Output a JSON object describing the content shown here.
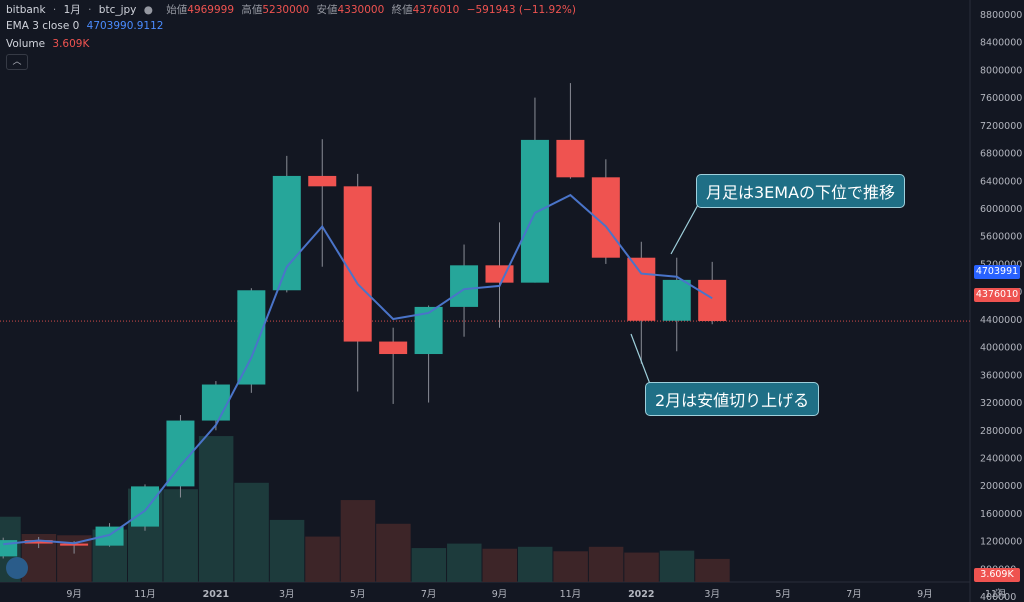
{
  "header": {
    "symbol": "bitbank",
    "interval": "1月",
    "pair": "btc_jpy",
    "ohlc": [
      {
        "label": "始値",
        "value": "4969999"
      },
      {
        "label": "高値",
        "value": "5230000"
      },
      {
        "label": "安値",
        "value": "4330000"
      },
      {
        "label": "終値",
        "value": "4376010"
      }
    ],
    "change": "−591943 (−11.92%)",
    "ema_label": "EMA 3 close 0",
    "ema_value": "4703990.9112",
    "volume_label": "Volume",
    "volume_value": "3.609K",
    "collapse_icon": "chevron-up-icon"
  },
  "annotations": {
    "callout_1": "月足は3EMAの下位で推移",
    "callout_2": "2月は安値切り上げる"
  },
  "price_tags": {
    "ema_tag": "4703991",
    "last_tag": "4376010",
    "volume_tag": "3.609K"
  },
  "colors": {
    "up": "#26a69a",
    "down": "#ef5350",
    "ema": "#4a74c9",
    "background": "#131722"
  },
  "chart_data": {
    "type": "candlestick",
    "months": [
      "2020-07",
      "2020-08",
      "2020-09",
      "2020-10",
      "2020-11",
      "2020-12",
      "2021-01",
      "2021-02",
      "2021-03",
      "2021-04",
      "2021-05",
      "2021-06",
      "2021-07",
      "2021-08",
      "2021-09",
      "2021-10",
      "2021-11",
      "2021-12",
      "2022-01",
      "2022-02",
      "2022-03"
    ],
    "ohlc": [
      [
        980000,
        1250000,
        950000,
        1215000
      ],
      [
        1215000,
        1260000,
        1100000,
        1165000
      ],
      [
        1165000,
        1200000,
        1020000,
        1135000
      ],
      [
        1135000,
        1460000,
        1120000,
        1410000
      ],
      [
        1410000,
        2020000,
        1350000,
        1990000
      ],
      [
        1990000,
        3020000,
        1830000,
        2940000
      ],
      [
        2940000,
        3510000,
        2800000,
        3460000
      ],
      [
        3460000,
        4850000,
        3340000,
        4820000
      ],
      [
        4820000,
        6760000,
        4790000,
        6470000
      ],
      [
        6470000,
        7000000,
        5160000,
        6320000
      ],
      [
        6320000,
        6500000,
        3360000,
        4080000
      ],
      [
        4080000,
        4280000,
        3180000,
        3900000
      ],
      [
        3900000,
        4600000,
        3200000,
        4580000
      ],
      [
        4580000,
        5480000,
        4150000,
        5180000
      ],
      [
        5180000,
        5800000,
        4280000,
        4930000
      ],
      [
        4930000,
        7600000,
        4930000,
        6990000
      ],
      [
        6990000,
        7810000,
        6430000,
        6450000
      ],
      [
        6450000,
        6710000,
        5200000,
        5290000
      ],
      [
        5290000,
        5520000,
        3760000,
        4380000
      ],
      [
        4380000,
        5290000,
        3940000,
        4970000
      ],
      [
        4969999,
        5230000,
        4330000,
        4376010
      ]
    ],
    "ema3": [
      1155000,
      1210000,
      1170000,
      1290000,
      1640000,
      2290000,
      2875000,
      3848000,
      5159000,
      5740000,
      4910000,
      4405000,
      4493000,
      4836000,
      4883000,
      5937000,
      6193000,
      5742000,
      5061000,
      5015000,
      4703991
    ],
    "volume_k": [
      10.2,
      7.5,
      7.3,
      8.2,
      14.6,
      14.5,
      22.8,
      15.5,
      9.7,
      7.1,
      12.8,
      9.1,
      5.3,
      6.0,
      5.2,
      5.5,
      4.8,
      5.5,
      4.6,
      4.9,
      3.609
    ],
    "y_axis_ticks": [
      400000,
      800000,
      1200000,
      1600000,
      2000000,
      2400000,
      2800000,
      3200000,
      3600000,
      4000000,
      4400000,
      4800000,
      5200000,
      5600000,
      6000000,
      6400000,
      6800000,
      7200000,
      7600000,
      8000000,
      8400000,
      8800000
    ],
    "x_axis_labels": [
      {
        "label": "9月",
        "month": "2020-09"
      },
      {
        "label": "11月",
        "month": "2020-11"
      },
      {
        "label": "2021",
        "month": "2021-01"
      },
      {
        "label": "3月",
        "month": "2021-03"
      },
      {
        "label": "5月",
        "month": "2021-05"
      },
      {
        "label": "7月",
        "month": "2021-07"
      },
      {
        "label": "9月",
        "month": "2021-09"
      },
      {
        "label": "11月",
        "month": "2021-11"
      },
      {
        "label": "2022",
        "month": "2022-01"
      },
      {
        "label": "3月",
        "month": "2022-03"
      },
      {
        "label": "5月",
        "month": "2022-05"
      },
      {
        "label": "7月",
        "month": "2022-07"
      },
      {
        "label": "9月",
        "month": "2022-09"
      },
      {
        "label": "11月",
        "month": "2022-11"
      }
    ],
    "ylim": [
      0,
      8900000
    ],
    "volume_ylim_k": [
      0,
      36
    ],
    "last_price": 4376010,
    "grid": false,
    "legend": "top-left"
  }
}
